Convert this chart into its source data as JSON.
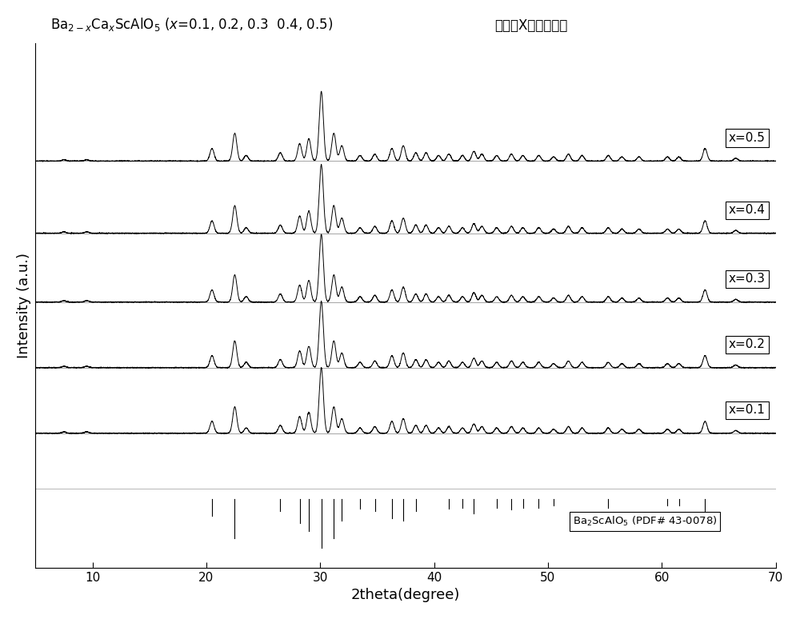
{
  "title_prefix": "Ba",
  "title_main": "2-x",
  "xlabel": "2theta(degree)",
  "ylabel": "Intensity (a.u.)",
  "xlim": [
    5,
    70
  ],
  "ylim": [
    -1.2,
    6.8
  ],
  "background_color": "#ffffff",
  "line_color": "#000000",
  "series_labels": [
    "x=0.5",
    "x=0.4",
    "x=0.3",
    "x=0.2",
    "x=0.1"
  ],
  "offsets": [
    5.0,
    3.9,
    2.85,
    1.85,
    0.85
  ],
  "peak_positions": [
    7.5,
    9.5,
    20.5,
    22.5,
    23.5,
    26.5,
    28.2,
    29.0,
    30.1,
    31.2,
    31.9,
    33.5,
    34.8,
    36.3,
    37.3,
    38.4,
    39.3,
    40.4,
    41.3,
    42.5,
    43.5,
    44.2,
    45.5,
    46.8,
    47.8,
    49.2,
    50.5,
    51.8,
    53.0,
    55.3,
    56.5,
    58.0,
    60.5,
    61.5,
    63.8,
    66.5
  ],
  "peak_heights": [
    0.02,
    0.02,
    0.18,
    0.4,
    0.08,
    0.12,
    0.25,
    0.32,
    1.0,
    0.4,
    0.22,
    0.08,
    0.1,
    0.18,
    0.22,
    0.12,
    0.12,
    0.08,
    0.1,
    0.08,
    0.14,
    0.1,
    0.08,
    0.1,
    0.08,
    0.08,
    0.06,
    0.1,
    0.08,
    0.08,
    0.06,
    0.06,
    0.06,
    0.06,
    0.18,
    0.04
  ],
  "pdf_peak_positions": [
    20.5,
    22.5,
    26.5,
    28.2,
    29.0,
    30.1,
    31.2,
    31.9,
    33.5,
    34.8,
    36.3,
    37.3,
    38.4,
    41.3,
    42.5,
    43.5,
    45.5,
    46.8,
    47.8,
    49.2,
    50.5,
    55.3,
    60.5,
    61.5,
    63.8
  ],
  "pdf_peak_heights": [
    0.35,
    0.8,
    0.25,
    0.5,
    0.65,
    1.0,
    0.8,
    0.45,
    0.2,
    0.25,
    0.4,
    0.45,
    0.25,
    0.2,
    0.18,
    0.3,
    0.18,
    0.22,
    0.18,
    0.18,
    0.14,
    0.18,
    0.14,
    0.14,
    0.4
  ],
  "sigma": 0.18,
  "noise_level": 0.003
}
